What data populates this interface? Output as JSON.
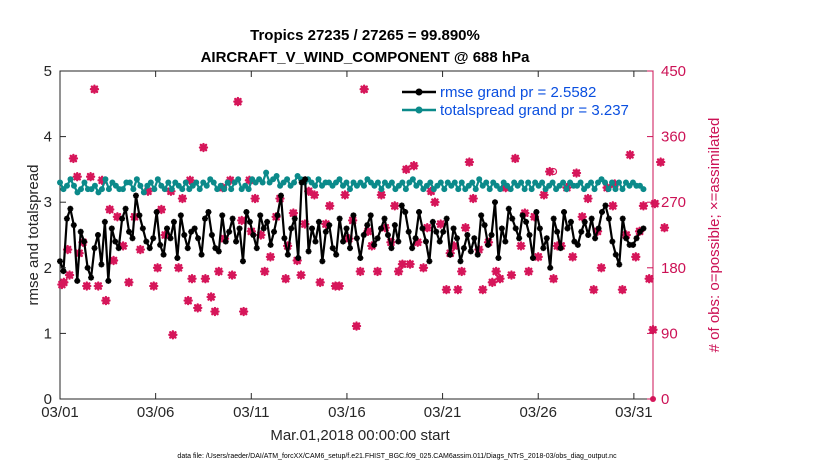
{
  "colors": {
    "rmse": "#000000",
    "spread": "#0b8a8a",
    "obs": "#d6165a",
    "legend_text": "#0a4fe0",
    "right_axis": "#cc1155"
  },
  "chart_data": {
    "type": "line",
    "title": "Tropics 27235 / 27265 = 99.890%",
    "subtitle": "AIRCRAFT_V_WIND_COMPONENT @ 688 hPa",
    "xlabel": "Mar.01,2018 00:00:00 start",
    "ylabel": "rmse and totalspread",
    "ylabel_right": "# of obs: o=possible; ×=assimilated",
    "footer": "data file: /Users/raeder/DAI/ATM_forcXX/CAM6_setup/f.e21.FHIST_BGC.f09_025.CAM6assim.011/Diags_NTrS_2018-03/obs_diag_output.nc",
    "x_tick_labels": [
      "03/01",
      "03/06",
      "03/11",
      "03/16",
      "03/21",
      "03/26",
      "03/31"
    ],
    "x_tick_days": [
      0,
      5,
      10,
      15,
      20,
      25,
      30
    ],
    "xlim": [
      0,
      31
    ],
    "ylim": [
      0,
      5
    ],
    "y_ticks": [
      "0",
      "1",
      "2",
      "3",
      "4",
      "5"
    ],
    "ylim_right": [
      0,
      450
    ],
    "y_ticks_right": [
      "0",
      "90",
      "180",
      "270",
      "360",
      "450"
    ],
    "legend_position": "top-right",
    "series": [
      {
        "name": "rmse grand pr = 2.5582",
        "axis": "left",
        "marker": "star",
        "values": [
          2.1,
          1.95,
          2.75,
          2.9,
          2.65,
          1.8,
          2.55,
          2.4,
          2.0,
          1.85,
          2.3,
          2.5,
          2.05,
          2.7,
          1.8,
          2.6,
          2.4,
          2.3,
          2.75,
          2.9,
          2.55,
          2.45,
          3.1,
          2.8,
          2.6,
          2.4,
          2.3,
          2.45,
          2.85,
          2.35,
          2.2,
          2.6,
          2.45,
          2.7,
          2.15,
          2.8,
          2.5,
          2.3,
          2.55,
          2.6,
          2.45,
          2.2,
          2.75,
          2.85,
          2.5,
          2.3,
          2.25,
          2.8,
          2.4,
          2.55,
          2.75,
          2.4,
          2.6,
          2.1,
          2.85,
          2.7,
          2.5,
          2.3,
          2.8,
          2.6,
          2.7,
          2.35,
          2.55,
          2.8,
          3.1,
          2.45,
          2.2,
          2.6,
          2.75,
          2.15,
          3.3,
          3.35,
          2.25,
          2.6,
          2.4,
          2.7,
          2.1,
          2.55,
          2.65,
          2.3,
          2.2,
          2.75,
          2.4,
          2.6,
          2.3,
          2.8,
          2.45,
          2.15,
          2.5,
          2.65,
          2.8,
          2.35,
          2.45,
          2.6,
          2.75,
          2.5,
          2.3,
          2.65,
          2.4,
          2.95,
          2.85,
          2.55,
          2.3,
          2.45,
          2.85,
          2.6,
          2.4,
          2.1,
          2.7,
          2.55,
          2.4,
          2.55,
          2.75,
          2.2,
          2.6,
          2.45,
          2.1,
          2.3,
          2.5,
          2.25,
          2.45,
          2.2,
          2.8,
          2.65,
          2.35,
          2.5,
          3.0,
          2.15,
          2.6,
          2.4,
          2.9,
          2.75,
          2.6,
          2.45,
          2.8,
          2.7,
          2.5,
          2.15,
          2.85,
          2.6,
          2.3,
          2.45,
          2.0,
          2.75,
          2.55,
          2.3,
          2.85,
          2.6,
          2.7,
          2.4,
          2.35,
          2.55,
          2.7,
          2.5,
          2.75,
          2.45,
          2.6,
          2.85,
          2.95,
          2.75,
          2.4,
          2.2,
          2.05,
          2.75,
          2.45,
          2.35,
          2.35,
          2.45,
          2.55,
          2.6
        ],
        "note": "values are sampled every ~0.18 day between day 0 and 30.5"
      },
      {
        "name": "totalspread grand pr = 3.237",
        "axis": "left",
        "marker": "circle",
        "values": [
          3.3,
          3.2,
          3.25,
          3.35,
          3.25,
          3.15,
          3.2,
          3.3,
          3.2,
          3.2,
          3.25,
          3.15,
          3.2,
          3.35,
          3.2,
          3.3,
          3.25,
          3.2,
          3.2,
          3.3,
          3.3,
          3.2,
          3.35,
          3.25,
          3.15,
          3.25,
          3.3,
          3.2,
          3.35,
          3.25,
          3.2,
          3.3,
          3.2,
          3.3,
          3.25,
          3.2,
          3.3,
          3.2,
          3.25,
          3.3,
          3.2,
          3.3,
          3.25,
          3.35,
          3.3,
          3.2,
          3.25,
          3.2,
          3.3,
          3.2,
          3.3,
          3.35,
          3.2,
          3.25,
          3.2,
          3.35,
          3.3,
          3.35,
          3.3,
          3.45,
          3.3,
          3.35,
          3.4,
          3.25,
          3.3,
          3.35,
          3.25,
          3.3,
          3.4,
          3.35,
          3.3,
          3.35,
          3.3,
          3.25,
          3.35,
          3.25,
          3.3,
          3.3,
          3.25,
          3.3,
          3.35,
          3.25,
          3.3,
          3.2,
          3.3,
          3.25,
          3.3,
          3.25,
          3.35,
          3.3,
          3.25,
          3.3,
          3.2,
          3.3,
          3.25,
          3.3,
          3.2,
          3.25,
          3.3,
          3.2,
          3.3,
          3.35,
          3.25,
          3.3,
          3.2,
          3.25,
          3.3,
          3.2,
          3.25,
          3.3,
          3.2,
          3.3,
          3.25,
          3.3,
          3.2,
          3.3,
          3.2,
          3.25,
          3.3,
          3.2,
          3.35,
          3.25,
          3.3,
          3.2,
          3.3,
          3.25,
          3.2,
          3.3,
          3.25,
          3.2,
          3.3,
          3.25,
          3.3,
          3.2,
          3.3,
          3.2,
          3.3,
          3.25,
          3.3,
          3.2,
          3.25,
          3.3,
          3.2,
          3.25,
          3.3,
          3.2,
          3.3,
          3.25,
          3.25,
          3.3,
          3.2,
          3.25,
          3.3,
          3.2,
          3.3,
          3.35,
          3.3,
          3.2,
          3.3,
          3.2,
          3.3,
          3.2,
          3.3,
          3.25,
          3.3,
          3.25,
          3.25,
          3.2
        ]
      },
      {
        "name": "# of obs possible / assimilated",
        "axis": "right",
        "marker": "x",
        "points": [
          [
            0.1,
            157
          ],
          [
            0.2,
            160
          ],
          [
            0.4,
            205
          ],
          [
            0.5,
            170
          ],
          [
            0.7,
            330
          ],
          [
            0.9,
            305
          ],
          [
            1.0,
            200
          ],
          [
            1.2,
            215
          ],
          [
            1.4,
            155
          ],
          [
            1.6,
            305
          ],
          [
            1.8,
            425
          ],
          [
            2.0,
            155
          ],
          [
            2.2,
            300
          ],
          [
            2.4,
            135
          ],
          [
            2.6,
            260
          ],
          [
            2.8,
            190
          ],
          [
            3.0,
            250
          ],
          [
            3.3,
            210
          ],
          [
            3.6,
            160
          ],
          [
            3.9,
            250
          ],
          [
            4.2,
            205
          ],
          [
            4.6,
            285
          ],
          [
            4.9,
            155
          ],
          [
            5.1,
            180
          ],
          [
            5.3,
            260
          ],
          [
            5.5,
            225
          ],
          [
            5.8,
            285
          ],
          [
            5.9,
            88
          ],
          [
            6.2,
            180
          ],
          [
            6.4,
            275
          ],
          [
            6.7,
            135
          ],
          [
            6.8,
            300
          ],
          [
            6.9,
            165
          ],
          [
            7.2,
            125
          ],
          [
            7.5,
            345
          ],
          [
            7.6,
            165
          ],
          [
            7.9,
            140
          ],
          [
            8.1,
            120
          ],
          [
            8.3,
            175
          ],
          [
            8.5,
            290
          ],
          [
            8.6,
            220
          ],
          [
            8.9,
            300
          ],
          [
            9.0,
            170
          ],
          [
            9.3,
            408
          ],
          [
            9.5,
            245
          ],
          [
            9.6,
            120
          ],
          [
            9.9,
            300
          ],
          [
            10.0,
            230
          ],
          [
            10.2,
            275
          ],
          [
            10.5,
            225
          ],
          [
            10.7,
            175
          ],
          [
            11.0,
            195
          ],
          [
            11.3,
            250
          ],
          [
            11.5,
            275
          ],
          [
            11.8,
            165
          ],
          [
            11.9,
            210
          ],
          [
            12.2,
            255
          ],
          [
            12.4,
            190
          ],
          [
            12.6,
            170
          ],
          [
            12.8,
            240
          ],
          [
            13.0,
            285
          ],
          [
            13.3,
            280
          ],
          [
            13.6,
            160
          ],
          [
            13.9,
            240
          ],
          [
            14.1,
            265
          ],
          [
            14.4,
            155
          ],
          [
            14.6,
            155
          ],
          [
            14.9,
            280
          ],
          [
            15.1,
            220
          ],
          [
            15.3,
            245
          ],
          [
            15.5,
            100
          ],
          [
            15.7,
            175
          ],
          [
            15.9,
            425
          ],
          [
            16.1,
            230
          ],
          [
            16.3,
            210
          ],
          [
            16.6,
            175
          ],
          [
            16.8,
            280
          ],
          [
            17.0,
            235
          ],
          [
            17.3,
            215
          ],
          [
            17.5,
            265
          ],
          [
            17.7,
            175
          ],
          [
            17.9,
            185
          ],
          [
            18.1,
            315
          ],
          [
            18.3,
            185
          ],
          [
            18.5,
            320
          ],
          [
            18.7,
            215
          ],
          [
            19.0,
            180
          ],
          [
            19.2,
            235
          ],
          [
            19.4,
            285
          ],
          [
            19.6,
            270
          ],
          [
            19.9,
            240
          ],
          [
            20.2,
            150
          ],
          [
            20.4,
            200
          ],
          [
            20.6,
            210
          ],
          [
            20.8,
            150
          ],
          [
            21.0,
            175
          ],
          [
            21.2,
            235
          ],
          [
            21.4,
            325
          ],
          [
            21.6,
            275
          ],
          [
            21.9,
            205
          ],
          [
            22.1,
            150
          ],
          [
            22.4,
            215
          ],
          [
            22.6,
            160
          ],
          [
            22.8,
            175
          ],
          [
            23.0,
            165
          ],
          [
            23.3,
            290
          ],
          [
            23.6,
            170
          ],
          [
            23.8,
            330
          ],
          [
            24.1,
            210
          ],
          [
            24.3,
            255
          ],
          [
            24.5,
            175
          ],
          [
            24.8,
            250
          ],
          [
            25.0,
            195
          ],
          [
            25.3,
            280
          ],
          [
            25.6,
            312
          ],
          [
            25.8,
            165
          ],
          [
            26.0,
            210
          ],
          [
            26.2,
            210
          ],
          [
            26.5,
            290
          ],
          [
            26.8,
            195
          ],
          [
            27.0,
            310
          ],
          [
            27.3,
            250
          ],
          [
            27.6,
            275
          ],
          [
            27.9,
            150
          ],
          [
            28.1,
            230
          ],
          [
            28.3,
            180
          ],
          [
            28.6,
            290
          ],
          [
            28.9,
            265
          ],
          [
            29.0,
            295
          ],
          [
            29.4,
            150
          ],
          [
            29.6,
            225
          ],
          [
            29.8,
            335
          ],
          [
            30.1,
            195
          ],
          [
            30.3,
            230
          ],
          [
            30.5,
            265
          ],
          [
            30.8,
            165
          ],
          [
            31.0,
            95
          ],
          [
            31.1,
            268
          ],
          [
            31.4,
            325
          ],
          [
            31.6,
            235
          ]
        ],
        "possible_marker": [
          [
            25.8,
            312
          ]
        ]
      }
    ]
  }
}
